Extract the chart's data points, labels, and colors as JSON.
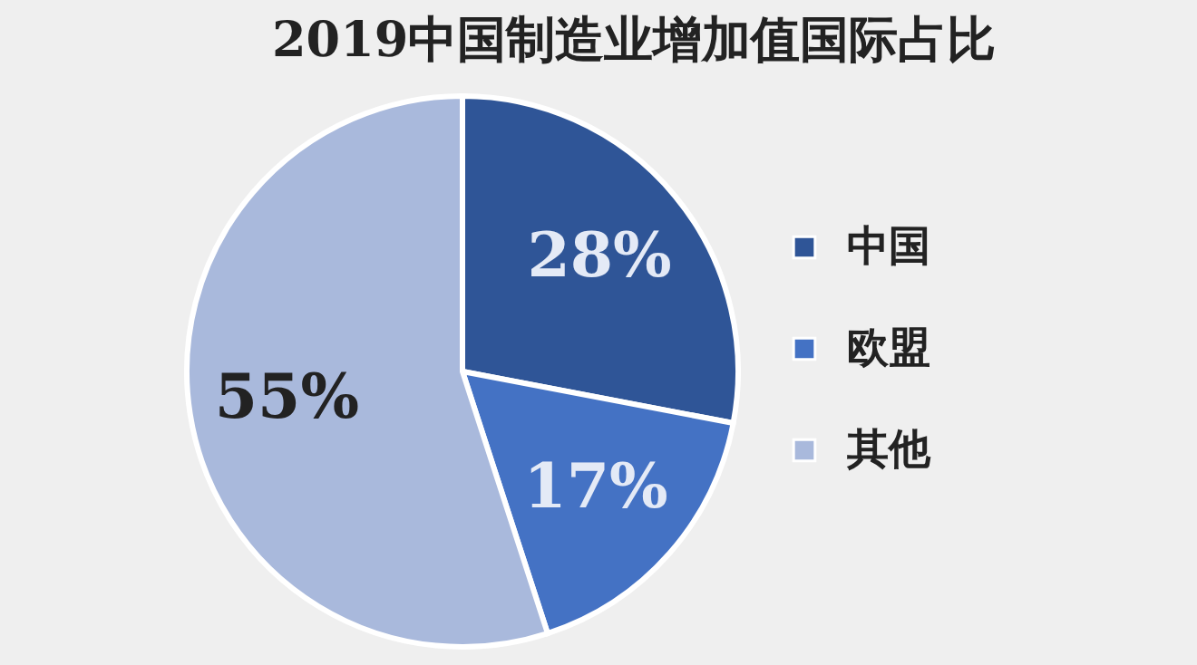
{
  "chart_data": {
    "type": "pie",
    "title": "2019中国制造业增加值国际占比",
    "categories": [
      "中国",
      "欧盟",
      "其他"
    ],
    "values": [
      28,
      17,
      55
    ],
    "colors": [
      "#2f5597",
      "#4472c4",
      "#a9b9dc"
    ],
    "value_labels": [
      "28%",
      "17%",
      "55%"
    ],
    "legend": "right"
  }
}
